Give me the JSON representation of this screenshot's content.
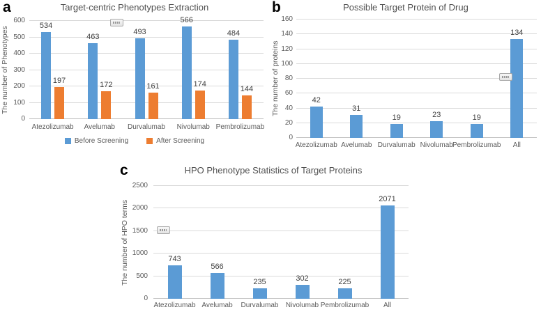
{
  "figure": {
    "background": "#ffffff",
    "colors": {
      "bar_blue": "#5B9BD5",
      "bar_orange": "#ED7D31",
      "gridline": "#D9D9D9",
      "tick_text": "#595959",
      "value_text": "#404040",
      "title_text": "#4F4F4F",
      "panel_letter": "#000000"
    }
  },
  "chart_data": [
    {
      "panel_label": "a",
      "type": "bar",
      "title": "Target-centric Phenotypes Extraction",
      "xlabel": "",
      "ylabel": "The number of Phenotypes",
      "ylim": [
        0,
        600
      ],
      "ytick_step": 100,
      "grid": true,
      "legend_position": "bottom",
      "categories": [
        "Atezolizumab",
        "Avelumab",
        "Durvalumab",
        "Nivolumab",
        "Pembrolizumab"
      ],
      "series": [
        {
          "name": "Before Screening",
          "color": "#5B9BD5",
          "values": [
            534,
            463,
            493,
            566,
            484
          ]
        },
        {
          "name": "After Screening",
          "color": "#ED7D31",
          "values": [
            197,
            172,
            161,
            174,
            144
          ]
        }
      ]
    },
    {
      "panel_label": "b",
      "type": "bar",
      "title": "Possible Target Protein of Drug",
      "xlabel": "",
      "ylabel": "The number of proteins",
      "ylim": [
        0,
        160
      ],
      "ytick_step": 20,
      "grid": true,
      "legend_position": "none",
      "categories": [
        "Atezolizumab",
        "Avelumab",
        "Durvalumab",
        "Nivolumab",
        "Pembrolizumab",
        "All"
      ],
      "series": [
        {
          "color": "#5B9BD5",
          "values": [
            42,
            31,
            19,
            23,
            19,
            134
          ]
        }
      ]
    },
    {
      "panel_label": "c",
      "type": "bar",
      "title": "HPO Phenotype Statistics of Target Proteins",
      "xlabel": "",
      "ylabel": "The number of HPO terms",
      "ylim": [
        0,
        2500
      ],
      "ytick_step": 500,
      "grid": true,
      "legend_position": "none",
      "categories": [
        "Atezolizumab",
        "Avelumab",
        "Durvalumab",
        "Nivolumab",
        "Pembrolizumab",
        "All"
      ],
      "series": [
        {
          "color": "#5B9BD5",
          "values": [
            743,
            566,
            235,
            302,
            225,
            2071
          ]
        }
      ]
    }
  ]
}
